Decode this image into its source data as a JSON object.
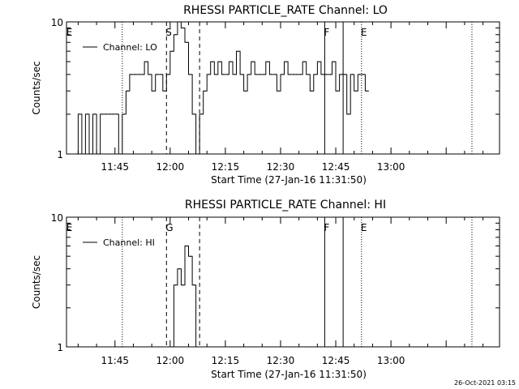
{
  "footer": {
    "timestamp": "26-Oct-2021 03:15"
  },
  "flags": [
    "E",
    "S",
    "G",
    "F",
    "E"
  ],
  "chart_data": [
    {
      "type": "line",
      "title": "RHESSI PARTICLE_RATE Channel: LO",
      "xlabel": "Start Time (27-Jan-16 11:31:50)",
      "ylabel": "Counts/sec",
      "xlim": [
        "11:31:50",
        "13:29:30"
      ],
      "ylim": [
        1,
        10
      ],
      "yscale": "log",
      "xticks": [
        "11:45",
        "12:00",
        "12:15",
        "12:30",
        "12:45",
        "13:00"
      ],
      "yticks": [
        "1",
        "10"
      ],
      "legend": {
        "label": "Channel: LO",
        "position": "top-left"
      },
      "series": [
        {
          "name": "Channel: LO",
          "x": [
            "11:34:00",
            "11:35:00",
            "11:36:00",
            "11:37:00",
            "11:38:00",
            "11:39:00",
            "11:40:00",
            "11:41:00",
            "11:42:00",
            "11:43:00",
            "11:44:00",
            "11:45:00",
            "11:46:00",
            "11:47:00",
            "11:48:00",
            "11:49:00",
            "11:50:00",
            "11:51:00",
            "11:52:00",
            "11:53:00",
            "11:54:00",
            "11:55:00",
            "11:56:00",
            "11:57:00",
            "11:58:00",
            "11:59:00",
            "12:00:00",
            "12:01:00",
            "12:02:00",
            "12:03:00",
            "12:04:00",
            "12:05:00",
            "12:06:00",
            "12:07:00",
            "12:08:00",
            "12:09:00",
            "12:10:00",
            "12:11:00",
            "12:12:00",
            "12:13:00",
            "12:14:00",
            "12:15:00",
            "12:16:00",
            "12:17:00",
            "12:18:00",
            "12:19:00",
            "12:20:00",
            "12:21:00",
            "12:22:00",
            "12:23:00",
            "12:24:00",
            "12:25:00",
            "12:26:00",
            "12:27:00",
            "12:28:00",
            "12:29:00",
            "12:30:00",
            "12:31:00",
            "12:32:00",
            "12:33:00",
            "12:34:00",
            "12:35:00",
            "12:36:00",
            "12:37:00",
            "12:38:00",
            "12:39:00",
            "12:40:00",
            "12:41:00",
            "12:42:00",
            "12:43:00",
            "12:44:00",
            "12:45:00",
            "12:46:00",
            "12:47:00",
            "12:48:00",
            "12:49:00",
            "12:50:00",
            "12:51:00",
            "12:52:00",
            "12:53:00"
          ],
          "values": [
            1,
            2,
            1,
            2,
            1,
            2,
            1,
            2,
            2,
            2,
            2,
            2,
            1,
            2,
            3,
            4,
            4,
            4,
            4,
            5,
            4,
            3,
            4,
            4,
            3,
            4,
            6,
            8,
            10,
            9,
            7,
            4,
            2,
            1,
            2,
            3,
            4,
            5,
            4,
            5,
            4,
            4,
            5,
            4,
            6,
            4,
            3,
            4,
            5,
            4,
            4,
            4,
            5,
            4,
            4,
            3,
            4,
            5,
            4,
            4,
            4,
            4,
            5,
            4,
            3,
            4,
            5,
            4,
            4,
            4,
            5,
            3,
            4,
            4,
            2,
            4,
            3,
            4,
            4,
            3
          ]
        }
      ],
      "annotations": {
        "dotted_lines": [
          "11:47:00",
          "12:52:00",
          "13:22:00"
        ],
        "dashed_lines": [
          "11:59:00",
          "12:08:00"
        ],
        "solid_lines": [
          "12:42:00",
          "12:47:00"
        ],
        "flags": [
          {
            "label": "E",
            "x": "11:32:00"
          },
          {
            "label": "S",
            "x": "11:59:00"
          },
          {
            "label": "F",
            "x": "12:42:00"
          },
          {
            "label": "E",
            "x": "12:52:00"
          }
        ]
      }
    },
    {
      "type": "line",
      "title": "RHESSI PARTICLE_RATE Channel: HI",
      "xlabel": "Start Time (27-Jan-16 11:31:50)",
      "ylabel": "Counts/sec",
      "xlim": [
        "11:31:50",
        "13:29:30"
      ],
      "ylim": [
        1,
        10
      ],
      "yscale": "log",
      "xticks": [
        "11:45",
        "12:00",
        "12:15",
        "12:30",
        "12:45",
        "13:00"
      ],
      "yticks": [
        "1",
        "10"
      ],
      "legend": {
        "label": "Channel: HI",
        "position": "top-left"
      },
      "series": [
        {
          "name": "Channel: HI",
          "x": [
            "12:00:00",
            "12:01:00",
            "12:02:00",
            "12:03:00",
            "12:04:00",
            "12:05:00",
            "12:06:00",
            "12:07:00"
          ],
          "values": [
            1,
            3,
            4,
            3,
            6,
            5,
            3,
            1
          ]
        }
      ],
      "annotations": {
        "dotted_lines": [
          "11:47:00",
          "12:52:00",
          "13:22:00"
        ],
        "dashed_lines": [
          "11:59:00",
          "12:08:00"
        ],
        "solid_lines": [
          "12:42:00",
          "12:47:00"
        ],
        "flags": [
          {
            "label": "E",
            "x": "11:32:00"
          },
          {
            "label": "G",
            "x": "11:59:00"
          },
          {
            "label": "F",
            "x": "12:42:00"
          },
          {
            "label": "E",
            "x": "12:52:00"
          }
        ]
      }
    }
  ]
}
